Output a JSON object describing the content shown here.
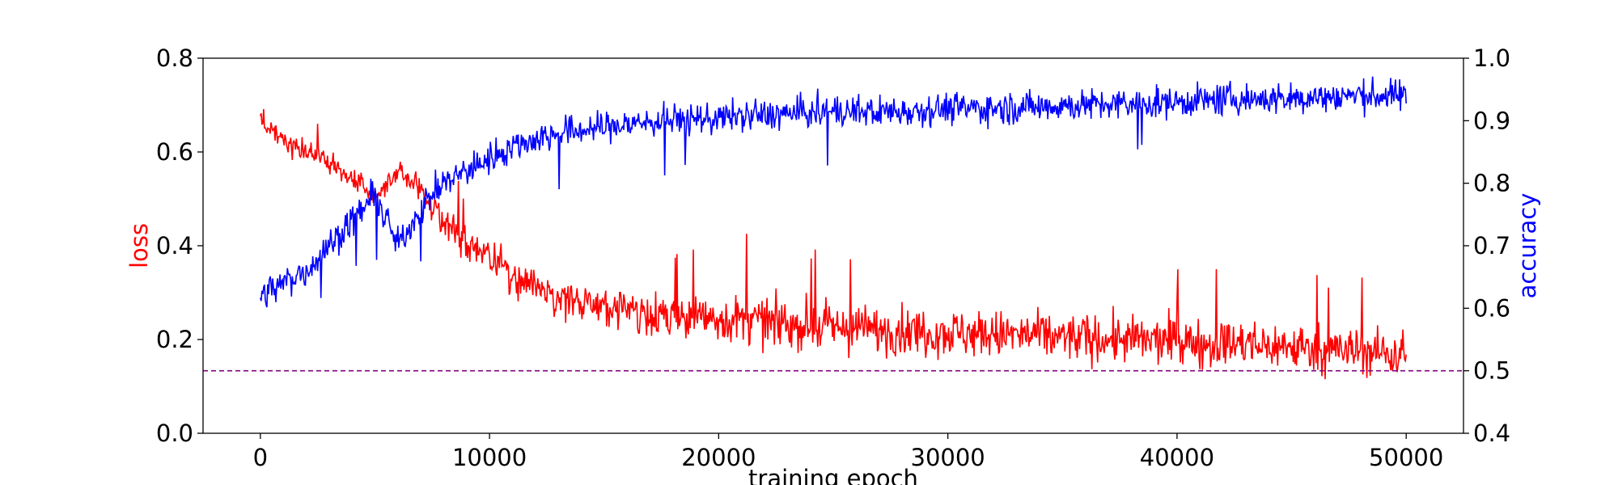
{
  "chart_data": {
    "type": "line",
    "title": "",
    "xlabel": "training epoch",
    "ylabel_left": "loss",
    "ylabel_right": "accuracy",
    "xlim": [
      -2500,
      52500
    ],
    "ylim_left": [
      0.0,
      0.8
    ],
    "ylim_right": [
      0.4,
      1.0
    ],
    "x_ticks": [
      0,
      10000,
      20000,
      30000,
      40000,
      50000
    ],
    "y_left_ticks": [
      0.0,
      0.2,
      0.4,
      0.6,
      0.8
    ],
    "y_right_ticks": [
      0.4,
      0.5,
      0.6,
      0.7,
      0.8,
      0.9,
      1.0
    ],
    "grid": false,
    "legend": "none",
    "colors": {
      "loss": "#ff0000",
      "accuracy": "#0000ff",
      "reference": "#800080"
    },
    "reference_line": {
      "axis": "right",
      "y": 0.5,
      "style": "dashed"
    },
    "series": [
      {
        "axis": "left",
        "x": [
          0,
          1000,
          2000,
          3000,
          4000,
          5000,
          6000,
          7000,
          8000,
          9000,
          10000,
          11000,
          12000,
          13000,
          14000,
          15000,
          17500,
          20000,
          22500,
          25000,
          27500,
          30000,
          32500,
          35000,
          37500,
          40000,
          42500,
          45000,
          47500,
          50000
        ],
        "values": [
          0.67,
          0.62,
          0.6,
          0.58,
          0.54,
          0.5,
          0.56,
          0.52,
          0.45,
          0.41,
          0.38,
          0.34,
          0.31,
          0.29,
          0.28,
          0.27,
          0.255,
          0.245,
          0.235,
          0.225,
          0.22,
          0.215,
          0.21,
          0.205,
          0.2,
          0.195,
          0.19,
          0.185,
          0.175,
          0.17
        ]
      },
      {
        "axis": "right",
        "x": [
          0,
          1000,
          2000,
          3000,
          4000,
          5000,
          6000,
          7000,
          8000,
          9000,
          10000,
          11000,
          12000,
          13000,
          14000,
          15000,
          17500,
          20000,
          22500,
          25000,
          27500,
          30000,
          32500,
          35000,
          37500,
          40000,
          42500,
          45000,
          47500,
          50000
        ],
        "values": [
          0.62,
          0.64,
          0.66,
          0.7,
          0.74,
          0.78,
          0.7,
          0.76,
          0.8,
          0.82,
          0.84,
          0.86,
          0.87,
          0.88,
          0.885,
          0.89,
          0.9,
          0.905,
          0.91,
          0.915,
          0.915,
          0.92,
          0.92,
          0.925,
          0.925,
          0.93,
          0.935,
          0.935,
          0.94,
          0.94
        ]
      }
    ]
  }
}
